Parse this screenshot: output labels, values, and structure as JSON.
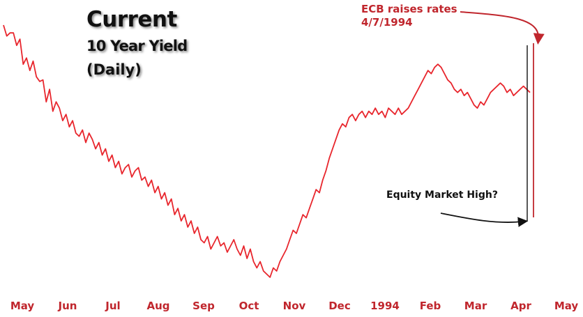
{
  "chart_data": {
    "type": "line",
    "title": "Current",
    "subtitle": "10 Year Yield",
    "subtitle2": "(Daily)",
    "x_tick_labels": [
      "May",
      "Jun",
      "Jul",
      "Aug",
      "Sep",
      "Oct",
      "Nov",
      "Dec",
      "1994",
      "Feb",
      "Mar",
      "Apr",
      "May"
    ],
    "line_color": "#e8262d",
    "annotations": {
      "ecb_line1": "ECB raises rates",
      "ecb_line2": "4/7/1994",
      "ecb_color": "#c0262d",
      "equity": "Equity Market High?"
    },
    "series": [
      {
        "values": [
          5.35,
          5.28,
          5.3,
          5.3,
          5.22,
          5.26,
          5.1,
          5.14,
          5.06,
          5.12,
          5.02,
          4.99,
          5.0,
          4.86,
          4.94,
          4.8,
          4.86,
          4.82,
          4.74,
          4.78,
          4.7,
          4.74,
          4.66,
          4.64,
          4.68,
          4.6,
          4.66,
          4.62,
          4.56,
          4.6,
          4.52,
          4.56,
          4.48,
          4.52,
          4.44,
          4.48,
          4.4,
          4.44,
          4.46,
          4.38,
          4.42,
          4.44,
          4.36,
          4.38,
          4.32,
          4.36,
          4.28,
          4.32,
          4.24,
          4.28,
          4.2,
          4.24,
          4.14,
          4.18,
          4.1,
          4.14,
          4.06,
          4.1,
          4.02,
          4.06,
          3.98,
          3.96,
          4.0,
          3.92,
          3.96,
          4.0,
          3.94,
          3.96,
          3.9,
          3.94,
          3.98,
          3.92,
          3.88,
          3.94,
          3.86,
          3.92,
          3.84,
          3.8,
          3.84,
          3.78,
          3.76,
          3.74,
          3.8,
          3.78,
          3.84,
          3.88,
          3.92,
          3.98,
          4.04,
          4.02,
          4.08,
          4.14,
          4.12,
          4.18,
          4.24,
          4.3,
          4.28,
          4.36,
          4.42,
          4.5,
          4.56,
          4.62,
          4.68,
          4.72,
          4.7,
          4.76,
          4.78,
          4.74,
          4.78,
          4.8,
          4.76,
          4.8,
          4.78,
          4.82,
          4.78,
          4.8,
          4.76,
          4.82,
          4.8,
          4.78,
          4.82,
          4.78,
          4.8,
          4.82,
          4.86,
          4.9,
          4.94,
          4.98,
          5.02,
          5.06,
          5.04,
          5.08,
          5.1,
          5.08,
          5.04,
          5.0,
          4.98,
          4.94,
          4.92,
          4.94,
          4.9,
          4.92,
          4.88,
          4.84,
          4.82,
          4.86,
          4.84,
          4.88,
          4.92,
          4.94,
          4.96,
          4.98,
          4.96,
          4.92,
          4.94,
          4.9,
          4.92,
          4.94,
          4.96,
          4.94,
          4.92
        ]
      }
    ]
  }
}
